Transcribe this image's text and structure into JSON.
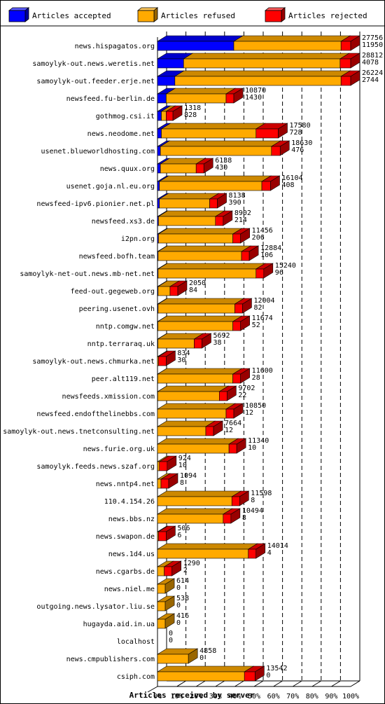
{
  "chart_data": {
    "type": "bar",
    "orientation": "horizontal",
    "stacked": true,
    "xlabel": "Articles received by server",
    "xlim": [
      0,
      100
    ],
    "xticks": [
      "0%",
      "10%",
      "20%",
      "30%",
      "40%",
      "50%",
      "60%",
      "70%",
      "80%",
      "90%",
      "100%"
    ],
    "grid": true,
    "legend_position": "top",
    "legend": [
      {
        "name": "Articles accepted",
        "color": "#0000ff"
      },
      {
        "name": "Articles refused",
        "color": "#ffaa00"
      },
      {
        "name": "Articles rejected",
        "color": "#ff0000"
      }
    ],
    "rows": [
      {
        "label": "news.hispagatos.org",
        "count_top": "27756",
        "count_bottom": "11950",
        "accepted": 39.5,
        "refused": 55.5,
        "rejected": 5
      },
      {
        "label": "samoylyk-out.news.weretis.net",
        "count_top": "28812",
        "count_bottom": "4078",
        "accepted": 13.5,
        "refused": 81,
        "rejected": 5.5
      },
      {
        "label": "samoylyk-out.feeder.erje.net",
        "count_top": "26224",
        "count_bottom": "2744",
        "accepted": 9,
        "refused": 86,
        "rejected": 5
      },
      {
        "label": "newsfeed.fu-berlin.de",
        "count_top": "10870",
        "count_bottom": "1430",
        "accepted": 4.5,
        "refused": 31,
        "rejected": 4
      },
      {
        "label": "gothmog.csi.it",
        "count_top": "1318",
        "count_bottom": "828",
        "accepted": 2,
        "refused": 2.5,
        "rejected": 3.5
      },
      {
        "label": "news.neodome.net",
        "count_top": "17580",
        "count_bottom": "728",
        "accepted": 2,
        "refused": 49,
        "rejected": 11.5
      },
      {
        "label": "usenet.blueworldhosting.com",
        "count_top": "18630",
        "count_bottom": "476",
        "accepted": 1.5,
        "refused": 57.5,
        "rejected": 4.5
      },
      {
        "label": "news.quux.org",
        "count_top": "6138",
        "count_bottom": "430",
        "accepted": 1.5,
        "refused": 18.5,
        "rejected": 4
      },
      {
        "label": "usenet.goja.nl.eu.org",
        "count_top": "16104",
        "count_bottom": "408",
        "accepted": 1,
        "refused": 53,
        "rejected": 4.5
      },
      {
        "label": "newsfeed-ipv6.pionier.net.pl",
        "count_top": "8138",
        "count_bottom": "390",
        "accepted": 1,
        "refused": 26,
        "rejected": 4
      },
      {
        "label": "newsfeed.xs3.de",
        "count_top": "8902",
        "count_bottom": "214",
        "accepted": 0.5,
        "refused": 29.5,
        "rejected": 4
      },
      {
        "label": "i2pn.org",
        "count_top": "11456",
        "count_bottom": "206",
        "accepted": 0.5,
        "refused": 38.5,
        "rejected": 4
      },
      {
        "label": "newsfeed.bofh.team",
        "count_top": "12884",
        "count_bottom": "106",
        "accepted": 0.3,
        "refused": 43.2,
        "rejected": 4
      },
      {
        "label": "samoylyk-net-out.news.mb-net.net",
        "count_top": "15240",
        "count_bottom": "96",
        "accepted": 0.3,
        "refused": 50.7,
        "rejected": 4
      },
      {
        "label": "feed-out.gegeweb.org",
        "count_top": "2050",
        "count_bottom": "84",
        "accepted": 0.3,
        "refused": 6.2,
        "rejected": 4
      },
      {
        "label": "peering.usenet.ovh",
        "count_top": "12004",
        "count_bottom": "82",
        "accepted": 0.3,
        "refused": 39.7,
        "rejected": 4
      },
      {
        "label": "nntp.comgw.net",
        "count_top": "11674",
        "count_bottom": "52",
        "accepted": 0.2,
        "refused": 38.8,
        "rejected": 4
      },
      {
        "label": "nntp.terraraq.uk",
        "count_top": "5692",
        "count_bottom": "38",
        "accepted": 0.2,
        "refused": 18.8,
        "rejected": 4
      },
      {
        "label": "samoylyk-out.news.chmurka.net",
        "count_top": "834",
        "count_bottom": "30",
        "accepted": 0,
        "refused": 0.5,
        "rejected": 4
      },
      {
        "label": "peer.alt119.net",
        "count_top": "11600",
        "count_bottom": "28",
        "accepted": 0.1,
        "refused": 38.9,
        "rejected": 4
      },
      {
        "label": "newsfeeds.xmission.com",
        "count_top": "9702",
        "count_bottom": "22",
        "accepted": 0.1,
        "refused": 31.9,
        "rejected": 4
      },
      {
        "label": "newsfeed.endofthelinebbs.com",
        "count_top": "10850",
        "count_bottom": "12",
        "accepted": 0,
        "refused": 35.5,
        "rejected": 4
      },
      {
        "label": "samoylyk-out.news.tnetconsulting.net",
        "count_top": "7664",
        "count_bottom": "12",
        "accepted": 0,
        "refused": 25,
        "rejected": 4
      },
      {
        "label": "news.furie.org.uk",
        "count_top": "11340",
        "count_bottom": "10",
        "accepted": 0,
        "refused": 37,
        "rejected": 4
      },
      {
        "label": "samoylyk.feeds.news.szaf.org",
        "count_top": "924",
        "count_bottom": "10",
        "accepted": 0,
        "refused": 1,
        "rejected": 4
      },
      {
        "label": "news.nntp4.net",
        "count_top": "1094",
        "count_bottom": "8",
        "accepted": 0,
        "refused": 1.8,
        "rejected": 4
      },
      {
        "label": "110.4.154.26",
        "count_top": "11598",
        "count_bottom": "8",
        "accepted": 0,
        "refused": 38.5,
        "rejected": 4
      },
      {
        "label": "news.bbs.nz",
        "count_top": "10494",
        "count_bottom": "8",
        "accepted": 0,
        "refused": 34,
        "rejected": 4
      },
      {
        "label": "news.swapon.de",
        "count_top": "506",
        "count_bottom": "6",
        "accepted": 0,
        "refused": 0.5,
        "rejected": 4
      },
      {
        "label": "news.1d4.us",
        "count_top": "14014",
        "count_bottom": "4",
        "accepted": 0,
        "refused": 47,
        "rejected": 4
      },
      {
        "label": "news.cgarbs.de",
        "count_top": "1290",
        "count_bottom": "2",
        "accepted": 0,
        "refused": 3.5,
        "rejected": 4
      },
      {
        "label": "news.niel.me",
        "count_top": "614",
        "count_bottom": "0",
        "accepted": 0,
        "refused": 4,
        "rejected": 0
      },
      {
        "label": "outgoing.news.lysator.liu.se",
        "count_top": "538",
        "count_bottom": "0",
        "accepted": 0,
        "refused": 4,
        "rejected": 0
      },
      {
        "label": "hugayda.aid.in.ua",
        "count_top": "416",
        "count_bottom": "0",
        "accepted": 0,
        "refused": 4,
        "rejected": 0
      },
      {
        "label": "localhost",
        "count_top": "0",
        "count_bottom": "0",
        "accepted": 0,
        "refused": 0,
        "rejected": 0
      },
      {
        "label": "news.cmpublishers.com",
        "count_top": "4858",
        "count_bottom": "0",
        "accepted": 0,
        "refused": 16,
        "rejected": 0
      },
      {
        "label": "csiph.com",
        "count_top": "13542",
        "count_bottom": "0",
        "accepted": 0,
        "refused": 45,
        "rejected": 5.5
      }
    ]
  }
}
